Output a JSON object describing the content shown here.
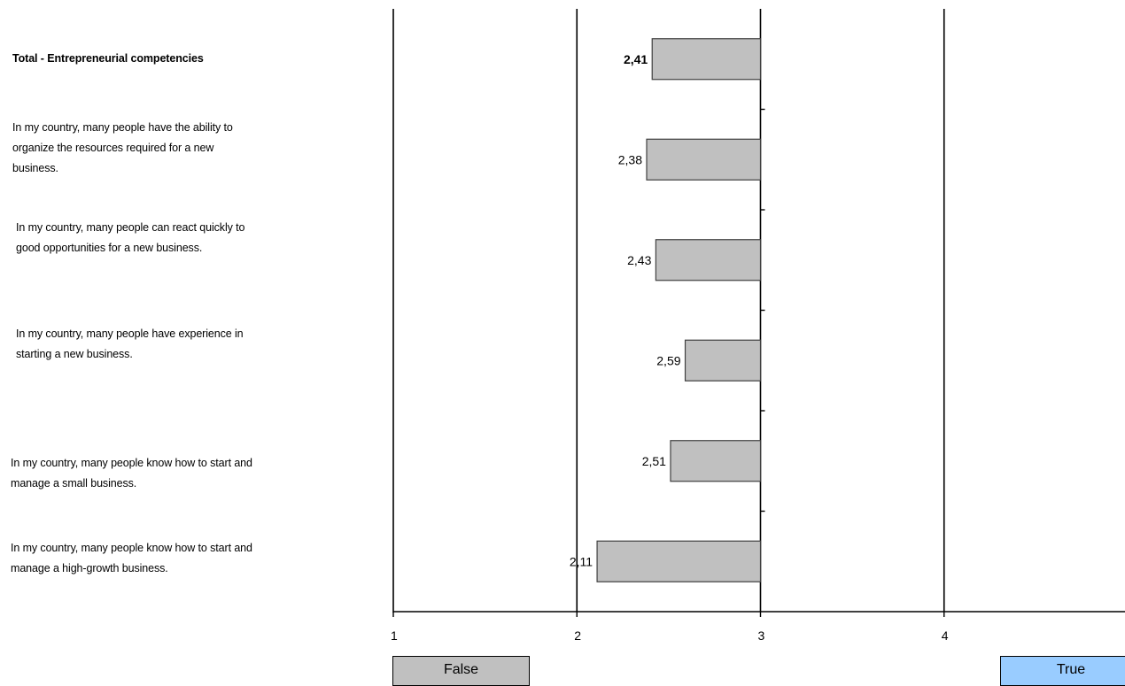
{
  "chart_data": {
    "type": "bar",
    "orientation": "horizontal",
    "categories": [
      "Total - Entrepreneurial competencies",
      "In my country, many people have the ability to organize the resources required for a new business.",
      "In my country, many people can react quickly to good opportunities for a new business.",
      "In my country, many people have experience in starting a new business.",
      "In my country, many people know how to start and manage a small business.",
      "In my country, many people know how to start and manage a high-growth business."
    ],
    "category_lines": [
      [
        "Total - Entrepreneurial competencies"
      ],
      [
        "In my country, many people have the ability to",
        "organize the resources required for a new",
        "business."
      ],
      [
        "In my country, many people can react quickly to",
        "good opportunities for a new business."
      ],
      [
        "In my country, many people have experience in",
        "starting a new business."
      ],
      [
        "In my country, many people know how to start and",
        "manage a small business."
      ],
      [
        "In my country, many people know how to start and",
        "manage a high-growth business."
      ]
    ],
    "values": [
      2.41,
      2.38,
      2.43,
      2.59,
      2.51,
      2.11
    ],
    "value_labels": [
      "2,41",
      "2,38",
      "2,43",
      "2,59",
      "2,51",
      "2,11"
    ],
    "bar_base": 3,
    "xlim": [
      1,
      5
    ],
    "x_ticks": [
      "1",
      "2",
      "3",
      "4"
    ],
    "x_tick_values": [
      1,
      2,
      3,
      4
    ],
    "grid": "vertical lines at 2, 3, 4",
    "bar_color": "#c0c0c0",
    "legend": [
      {
        "label": "False",
        "color": "#c0c0c0"
      },
      {
        "label": "True",
        "color": "#99ccff"
      }
    ],
    "legend_placement": "bottom"
  }
}
